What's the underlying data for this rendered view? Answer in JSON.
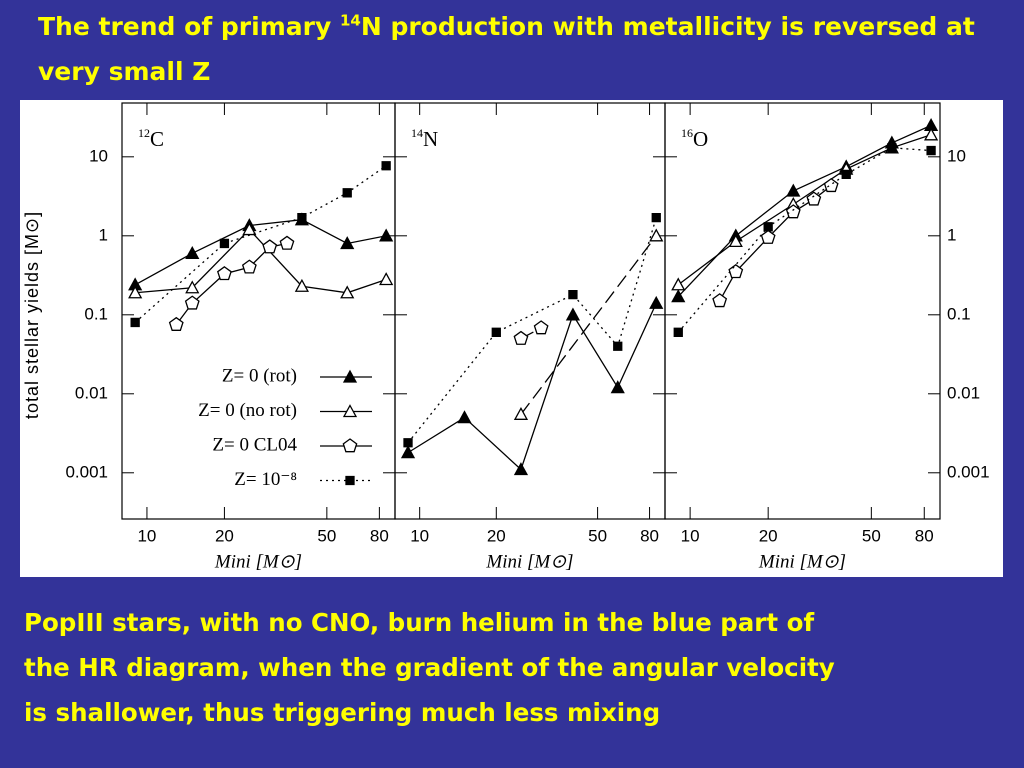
{
  "title": {
    "before": "The trend of primary ",
    "sup": "14",
    "after": "N production with metallicity is reversed at very small Z"
  },
  "body_lines": [
    "PopIII stars, with no CNO, burn helium in the blue part of",
    "the HR diagram, when the gradient of the angular velocity",
    "is shallower, thus triggering much less mixing"
  ],
  "chart_data": [
    {
      "type": "line",
      "label_sup": "12",
      "label": "C",
      "ylabel": "total stellar yields [M⊙]",
      "xlabel": "Mini [M⊙]",
      "xscale": "log",
      "yscale": "log",
      "xlim": [
        8,
        92
      ],
      "ylim": [
        0.00026,
        48
      ],
      "xticks": [
        10,
        20,
        50,
        80
      ],
      "yticks": [
        10,
        1,
        0.1,
        0.01,
        0.001
      ],
      "ytick_side": "left",
      "legend": "lower right",
      "series": [
        {
          "name": "Z= 0 (rot)",
          "marker": "triangle-filled",
          "dash": "none",
          "x": [
            9,
            15,
            25,
            40,
            60,
            85
          ],
          "values": [
            0.24,
            0.6,
            1.35,
            1.6,
            0.8,
            1.0
          ]
        },
        {
          "name": "Z= 0 (no rot)",
          "marker": "triangle-open",
          "dash": "none",
          "x": [
            9,
            15,
            25,
            40,
            60,
            85
          ],
          "values": [
            0.19,
            0.22,
            1.2,
            0.23,
            0.19,
            0.28
          ]
        },
        {
          "name": "Z= 0 CL04",
          "marker": "pentagon-open",
          "dash": "none",
          "x": [
            13,
            15,
            20,
            25,
            30,
            35
          ],
          "values": [
            0.075,
            0.14,
            0.33,
            0.4,
            0.72,
            0.8
          ]
        },
        {
          "name": "Z= 10⁻⁸",
          "marker": "square-filled",
          "dash": "dot",
          "x": [
            9,
            20,
            40,
            60,
            85
          ],
          "values": [
            0.08,
            0.8,
            1.7,
            3.5,
            7.7
          ]
        }
      ]
    },
    {
      "type": "line",
      "label_sup": "14",
      "label": "N",
      "xlabel": "Mini [M⊙]",
      "xscale": "log",
      "yscale": "log",
      "xlim": [
        8,
        92
      ],
      "ylim": [
        0.00026,
        48
      ],
      "xticks": [
        10,
        20,
        50,
        80
      ],
      "yticks": [
        10,
        1,
        0.1,
        0.01,
        0.001
      ],
      "series": [
        {
          "marker": "triangle-filled",
          "dash": "none",
          "x": [
            9,
            15,
            25,
            40,
            60,
            85
          ],
          "values": [
            0.0018,
            0.005,
            0.0011,
            0.1,
            0.012,
            0.14
          ]
        },
        {
          "marker": "triangle-open",
          "dash": "long",
          "x": [
            25,
            85
          ],
          "values": [
            0.0055,
            1.0
          ]
        },
        {
          "marker": "pentagon-open",
          "dash": "long",
          "x": [
            25,
            30
          ],
          "values": [
            0.05,
            0.068
          ]
        },
        {
          "marker": "square-filled",
          "dash": "dot",
          "x": [
            9,
            20,
            40,
            60,
            85
          ],
          "values": [
            0.0024,
            0.06,
            0.18,
            0.04,
            1.7
          ]
        }
      ]
    },
    {
      "type": "line",
      "label_sup": "16",
      "label": "O",
      "xlabel": "Mini [M⊙]",
      "xscale": "log",
      "yscale": "log",
      "xlim": [
        8,
        92
      ],
      "ylim": [
        0.00026,
        48
      ],
      "xticks": [
        10,
        20,
        50,
        80
      ],
      "yticks": [
        10,
        1,
        0.1,
        0.01,
        0.001
      ],
      "ytick_side": "right",
      "series": [
        {
          "marker": "triangle-filled",
          "dash": "none",
          "x": [
            9,
            15,
            25,
            40,
            60,
            85
          ],
          "values": [
            0.17,
            1.0,
            3.7,
            7.5,
            15,
            25
          ]
        },
        {
          "marker": "triangle-open",
          "dash": "none",
          "x": [
            9,
            15,
            25,
            40,
            60,
            85
          ],
          "values": [
            0.24,
            0.85,
            2.5,
            7,
            13,
            19
          ]
        },
        {
          "marker": "pentagon-open",
          "dash": "none",
          "x": [
            13,
            15,
            20,
            25,
            30,
            35
          ],
          "values": [
            0.15,
            0.35,
            0.95,
            2.0,
            2.9,
            4.3
          ]
        },
        {
          "marker": "square-filled",
          "dash": "dot",
          "x": [
            9,
            20,
            40,
            60,
            85
          ],
          "values": [
            0.06,
            1.3,
            6,
            13,
            12
          ]
        }
      ]
    }
  ]
}
